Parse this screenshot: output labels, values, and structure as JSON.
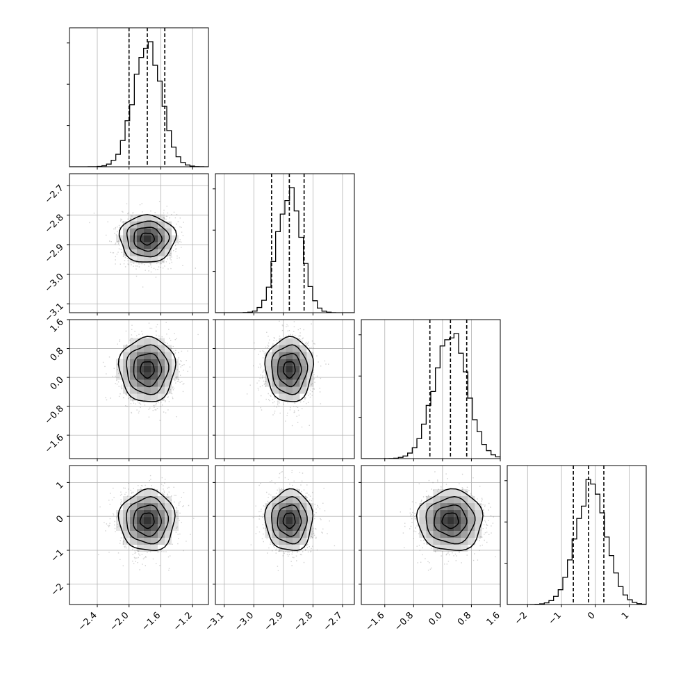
{
  "chart_data": {
    "type": "corner",
    "parameters": [
      {
        "mean": -1.77,
        "sd": 0.175,
        "quantiles": [
          -2.0,
          -1.77,
          -1.55
        ],
        "range": [
          -2.75,
          -1.0
        ],
        "ticks": [
          -2.4,
          -2.0,
          -1.6,
          -1.2
        ],
        "tick_labels": [
          "−2.4",
          "−2.0",
          "−1.6",
          "−1.2"
        ]
      },
      {
        "mean": -2.88,
        "sd": 0.04,
        "quantiles": [
          -2.94,
          -2.88,
          -2.83
        ],
        "range": [
          -3.13,
          -2.66
        ],
        "ticks": [
          -3.1,
          -3.0,
          -2.9,
          -2.8,
          -2.7
        ],
        "tick_labels": [
          "−3.1",
          "−3.0",
          "−2.9",
          "−2.8",
          "−2.7"
        ]
      },
      {
        "mean": 0.22,
        "sd": 0.45,
        "quantiles": [
          -0.35,
          0.22,
          0.67
        ],
        "range": [
          -2.25,
          1.6
        ],
        "ticks": [
          -1.6,
          -0.8,
          0.0,
          0.8,
          1.6
        ],
        "tick_labels": [
          "−1.6",
          "−0.8",
          "0.0",
          "0.8",
          "1.6"
        ]
      },
      {
        "mean": -0.12,
        "sd": 0.45,
        "quantiles": [
          -0.65,
          -0.2,
          0.25
        ],
        "range": [
          -2.6,
          1.5
        ],
        "ticks": [
          -2,
          -1,
          0,
          1
        ],
        "tick_labels": [
          "−2",
          "−1",
          "0",
          "1"
        ]
      }
    ],
    "colors": {
      "line": "#000000",
      "grid": "#b0b0b0",
      "scatter": "#7a7a7a",
      "density": "#000000"
    },
    "grid": true
  }
}
